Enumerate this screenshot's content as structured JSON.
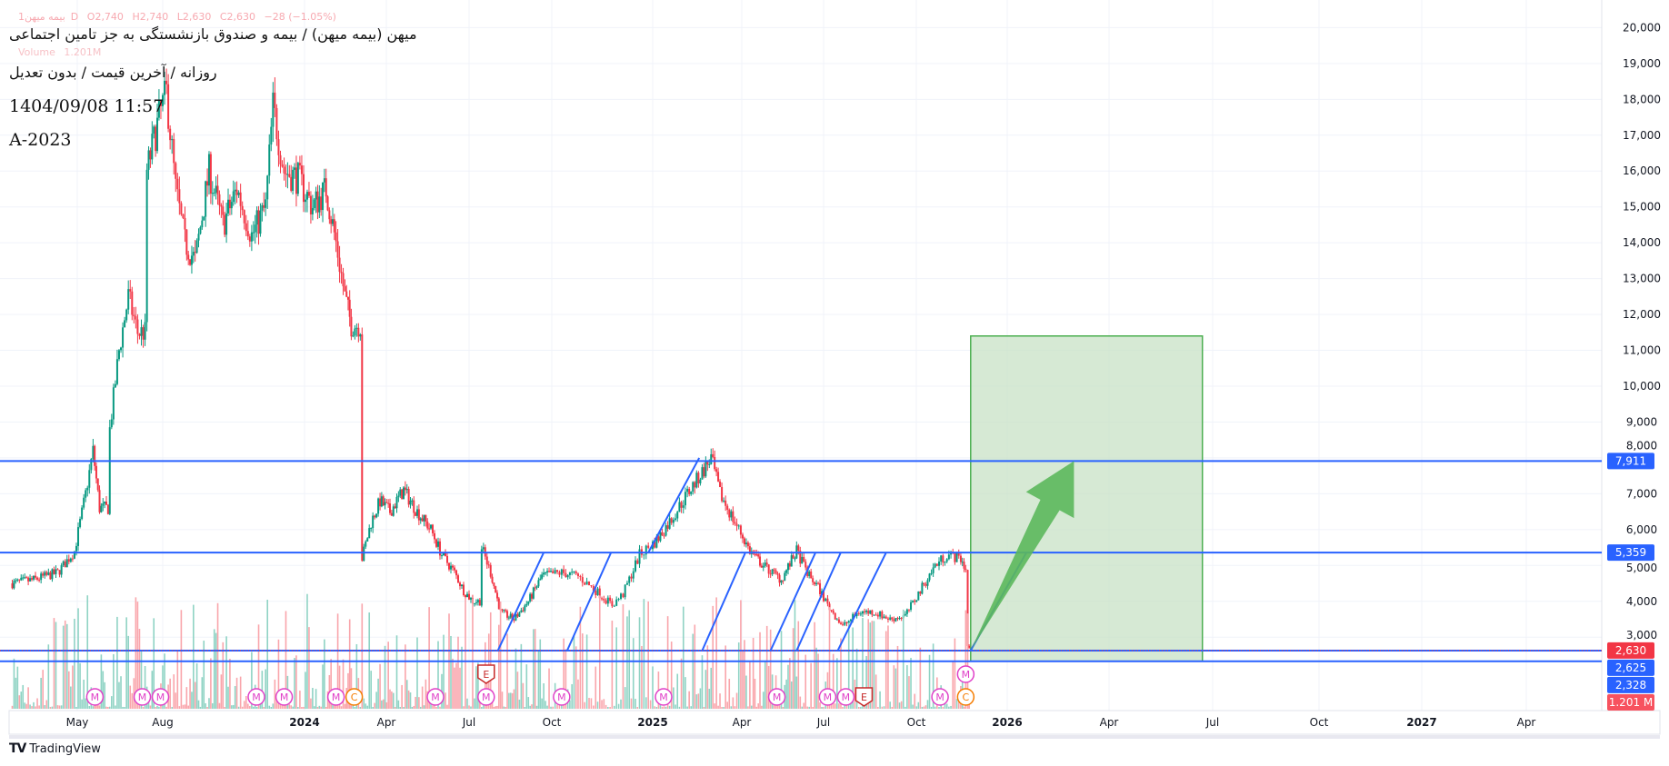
{
  "legend": {
    "symbol": "بیمه میهن",
    "interval": "1D",
    "open": "O2,740",
    "high": "H2,740",
    "low": "L2,630",
    "close": "C2,630",
    "change": "−28 (−1.05%)",
    "volume_label": "Volume",
    "volume_value": "1.201M"
  },
  "header": {
    "title": "میهن (بیمه میهن) / بیمه و صندوق بازنشستگی به جز تامین اجتماعی",
    "subtitle": "روزانه / آخرین قیمت / بدون تعدیل",
    "datetime": "1404/09/08 11:57",
    "tag": "A-2023"
  },
  "branding": {
    "logo_text": "TradingView"
  },
  "chart_data": {
    "type": "candlestick",
    "title": "میهن (بیمه میهن)",
    "x_ticks": [
      "May",
      "Aug",
      "2024",
      "Apr",
      "Jul",
      "Oct",
      "2025",
      "Apr",
      "Jul",
      "Oct",
      "2026",
      "Apr",
      "Jul",
      "Oct",
      "2027",
      "Apr"
    ],
    "y_ticks": [
      "20,000",
      "19,000",
      "18,000",
      "17,000",
      "16,000",
      "15,000",
      "14,000",
      "13,000",
      "12,000",
      "11,000",
      "10,000",
      "9,000",
      "8,000",
      "7,000",
      "6,000",
      "5,000",
      "4,000",
      "3,000"
    ],
    "y_tick_values": [
      20000,
      19000,
      18000,
      17000,
      16000,
      15000,
      14000,
      13000,
      12000,
      11000,
      10000,
      9000,
      8000,
      7000,
      6000,
      5000,
      4000,
      3000
    ],
    "ylim": [
      2000,
      20400
    ],
    "grid": true,
    "colors": {
      "up": "#089981",
      "down": "#f23645",
      "vol_up": "#8fd3c4",
      "vol_down": "#f9a5ab",
      "line": "#2962ff",
      "target_fill": "#c8e1c6",
      "target_border": "#4caf50",
      "arrow": "#5cb85c"
    },
    "price_path": [
      [
        "2023-02-20",
        4500
      ],
      [
        "2023-03-15",
        4600
      ],
      [
        "2023-04-10",
        4800
      ],
      [
        "2023-04-28",
        5400
      ],
      [
        "2023-05-10",
        7000
      ],
      [
        "2023-05-18",
        8200
      ],
      [
        "2023-05-25",
        6600
      ],
      [
        "2023-06-05",
        8800
      ],
      [
        "2023-06-15",
        11000
      ],
      [
        "2023-06-25",
        12500
      ],
      [
        "2023-07-05",
        11500
      ],
      [
        "2023-07-15",
        16000
      ],
      [
        "2023-07-28",
        17500
      ],
      [
        "2023-08-05",
        18200
      ],
      [
        "2023-08-15",
        15500
      ],
      [
        "2023-08-25",
        14000
      ],
      [
        "2023-09-05",
        13500
      ],
      [
        "2023-09-20",
        16000
      ],
      [
        "2023-10-05",
        14500
      ],
      [
        "2023-10-20",
        15500
      ],
      [
        "2023-11-05",
        14200
      ],
      [
        "2023-11-20",
        15000
      ],
      [
        "2023-11-28",
        17800
      ],
      [
        "2023-12-10",
        16000
      ],
      [
        "2023-12-25",
        15800
      ],
      [
        "2024-01-10",
        15000
      ],
      [
        "2024-01-25",
        15500
      ],
      [
        "2024-02-05",
        14000
      ],
      [
        "2024-02-15",
        12500
      ],
      [
        "2024-02-22",
        11700
      ],
      [
        "2024-03-05",
        5200
      ],
      [
        "2024-03-15",
        6200
      ],
      [
        "2024-03-25",
        6800
      ],
      [
        "2024-04-05",
        6500
      ],
      [
        "2024-04-20",
        7100
      ],
      [
        "2024-05-05",
        6500
      ],
      [
        "2024-05-20",
        6000
      ],
      [
        "2024-06-01",
        5300
      ],
      [
        "2024-06-15",
        4800
      ],
      [
        "2024-06-25",
        4300
      ],
      [
        "2024-07-05",
        4000
      ],
      [
        "2024-07-15",
        5500
      ],
      [
        "2024-07-25",
        4800
      ],
      [
        "2024-08-05",
        3700
      ],
      [
        "2024-08-20",
        3500
      ],
      [
        "2024-09-05",
        4000
      ],
      [
        "2024-09-20",
        4700
      ],
      [
        "2024-10-10",
        4800
      ],
      [
        "2024-10-25",
        4700
      ],
      [
        "2024-11-10",
        4300
      ],
      [
        "2024-11-25",
        3900
      ],
      [
        "2024-12-05",
        4200
      ],
      [
        "2024-12-20",
        5300
      ],
      [
        "2025-01-05",
        5700
      ],
      [
        "2025-01-20",
        6300
      ],
      [
        "2025-02-05",
        7000
      ],
      [
        "2025-02-20",
        7600
      ],
      [
        "2025-03-01",
        8000
      ],
      [
        "2025-03-10",
        7000
      ],
      [
        "2025-03-25",
        6200
      ],
      [
        "2025-04-10",
        5400
      ],
      [
        "2025-04-25",
        5000
      ],
      [
        "2025-05-15",
        4600
      ],
      [
        "2025-06-01",
        5400
      ],
      [
        "2025-06-15",
        4700
      ],
      [
        "2025-06-25",
        4400
      ],
      [
        "2025-07-05",
        3900
      ],
      [
        "2025-07-20",
        3300
      ],
      [
        "2025-08-05",
        3700
      ],
      [
        "2025-08-20",
        3700
      ],
      [
        "2025-09-05",
        3500
      ],
      [
        "2025-09-20",
        3600
      ],
      [
        "2025-10-05",
        4300
      ],
      [
        "2025-10-20",
        5000
      ],
      [
        "2025-11-01",
        5300
      ],
      [
        "2025-11-15",
        5200
      ],
      [
        "2025-11-20",
        4900
      ],
      [
        "2025-11-22",
        2740
      ],
      [
        "2025-11-25",
        2630
      ]
    ],
    "horizontal_levels": [
      {
        "price": 7911,
        "label": "7,911",
        "style": "solid"
      },
      {
        "price": 5359,
        "label": "5,359",
        "style": "solid"
      },
      {
        "price": 2625,
        "label": "2,625",
        "style": "solid"
      },
      {
        "price": 2328,
        "label": "2,328",
        "style": "solid"
      }
    ],
    "last_price": {
      "price": 2630,
      "label": "2,630"
    },
    "last_volume": {
      "label": "1.201 M"
    },
    "trend_lines": [
      [
        [
          "2024-08-02",
          2625
        ],
        [
          "2024-09-22",
          5359
        ]
      ],
      [
        [
          "2024-10-15",
          2625
        ],
        [
          "2024-11-24",
          5359
        ]
      ],
      [
        [
          "2024-12-28",
          5359
        ],
        [
          "2025-02-17",
          8000
        ]
      ],
      [
        [
          "2025-02-20",
          2625
        ],
        [
          "2025-04-05",
          5359
        ]
      ],
      [
        [
          "2025-05-03",
          2625
        ],
        [
          "2025-06-22",
          5359
        ]
      ],
      [
        [
          "2025-06-01",
          2625
        ],
        [
          "2025-07-18",
          5359
        ]
      ],
      [
        [
          "2025-07-15",
          2625
        ],
        [
          "2025-09-01",
          5359
        ]
      ],
      [
        [
          "2025-11-25",
          2630
        ],
        [
          "2026-01-18",
          5359
        ]
      ]
    ],
    "target_box": {
      "from": "2025-11-25",
      "to": "2026-06-22",
      "top": 11400,
      "bottom": 2328
    },
    "target_arrow": {
      "from": [
        "2025-11-25",
        2630
      ],
      "to": [
        "2026-03-01",
        7911
      ]
    },
    "events": [
      {
        "type": "M",
        "date": "2023-05-20"
      },
      {
        "type": "M",
        "date": "2023-07-10"
      },
      {
        "type": "M",
        "date": "2023-07-28"
      },
      {
        "type": "M",
        "date": "2023-11-10"
      },
      {
        "type": "M",
        "date": "2023-12-10"
      },
      {
        "type": "M",
        "date": "2024-02-05"
      },
      {
        "type": "C",
        "date": "2024-02-25"
      },
      {
        "type": "M",
        "date": "2024-05-25"
      },
      {
        "type": "M",
        "date": "2024-07-20"
      },
      {
        "type": "E",
        "date": "2024-07-20",
        "row": 2
      },
      {
        "type": "M",
        "date": "2024-10-10"
      },
      {
        "type": "M",
        "date": "2025-01-12"
      },
      {
        "type": "M",
        "date": "2025-05-10"
      },
      {
        "type": "M",
        "date": "2025-07-05"
      },
      {
        "type": "M",
        "date": "2025-07-10"
      },
      {
        "type": "E",
        "date": "2025-07-15"
      },
      {
        "type": "M",
        "date": "2025-10-25"
      },
      {
        "type": "C",
        "date": "2025-11-20"
      },
      {
        "type": "M",
        "date": "2025-11-20",
        "row": 2
      }
    ]
  }
}
